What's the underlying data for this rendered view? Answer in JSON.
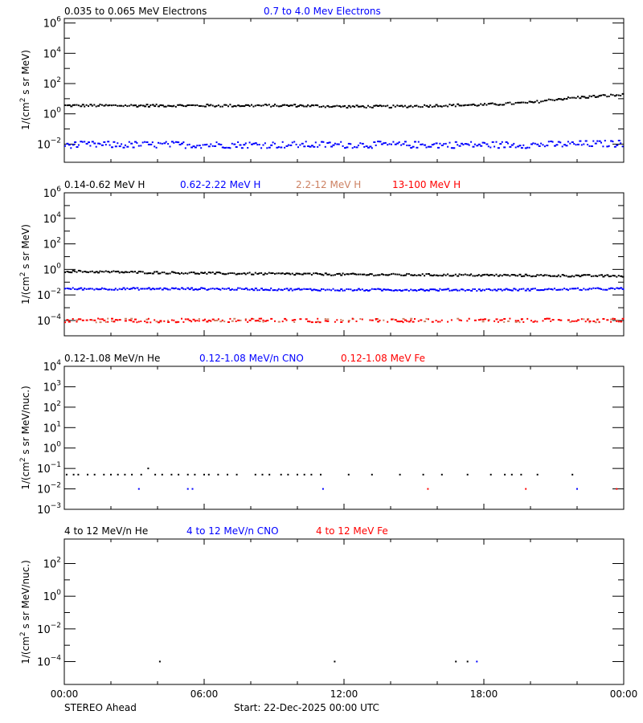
{
  "colors": {
    "black": "#000000",
    "blue": "#0000ff",
    "tan": "#cd8162",
    "red": "#ff0000"
  },
  "footer": {
    "spacecraft": "STEREO Ahead",
    "start": "Start: 22-Dec-2025 00:00 UTC"
  },
  "x_axis": {
    "tick_labels": [
      "00:00",
      "06:00",
      "12:00",
      "18:00",
      "00:00"
    ],
    "major_hours": [
      0,
      6,
      12,
      18,
      24
    ],
    "minor_hours": [
      2,
      4,
      8,
      10,
      14,
      16,
      20,
      22
    ]
  },
  "chart_data": [
    {
      "type": "scatter",
      "title": "",
      "panel": "electrons",
      "legend": [
        {
          "label": "0.035 to 0.065 MeV Electrons",
          "color": "#000000"
        },
        {
          "label": "0.7 to 4.0 Mev Electrons",
          "color": "#0000ff"
        }
      ],
      "xlabel": "",
      "ylabel": "1/(cm² s sr MeV)",
      "ylog": true,
      "ylim_exp": [
        -3.2,
        6.3
      ],
      "y_tick_labels": [
        "10^-2",
        "10^0",
        "10^2",
        "10^4",
        "10^6"
      ],
      "xlim_hours": [
        0,
        24
      ],
      "series": [
        {
          "name": "0.035 to 0.065 MeV Electrons",
          "color": "#000000",
          "hours": [
            0,
            2,
            4,
            6,
            8,
            10,
            12,
            14,
            16,
            18,
            20,
            21,
            22,
            23,
            24
          ],
          "values": [
            3.5,
            3.5,
            3.5,
            3.5,
            3.5,
            3.5,
            3.0,
            3.0,
            3.5,
            4.0,
            5.5,
            9.0,
            12,
            15,
            18
          ]
        },
        {
          "name": "0.7 to 4.0 Mev Electrons",
          "color": "#0000ff",
          "hours": [
            0,
            4,
            8,
            12,
            16,
            20,
            24
          ],
          "values": [
            0.009,
            0.009,
            0.009,
            0.009,
            0.009,
            0.009,
            0.011
          ]
        }
      ]
    },
    {
      "type": "scatter",
      "panel": "protons",
      "legend": [
        {
          "label": "0.14-0.62 MeV H",
          "color": "#000000"
        },
        {
          "label": "0.62-2.22 MeV H",
          "color": "#0000ff"
        },
        {
          "label": "2.2-12 MeV H",
          "color": "#cd8162"
        },
        {
          "label": "13-100 MeV H",
          "color": "#ff0000"
        }
      ],
      "ylabel": "1/(cm² s sr MeV)",
      "ylog": true,
      "ylim_exp": [
        -5.2,
        5.0
      ],
      "y_tick_labels": [
        "10^-4",
        "10^-2",
        "10^0",
        "10^2",
        "10^4",
        "10^6"
      ],
      "series": [
        {
          "name": "0.14-0.62 MeV H",
          "color": "#000000",
          "hours": [
            0,
            6,
            12,
            18,
            24
          ],
          "values": [
            0.7,
            0.5,
            0.4,
            0.35,
            0.3
          ]
        },
        {
          "name": "0.62-2.22 MeV H",
          "color": "#0000ff",
          "hours": [
            0,
            6,
            12,
            18,
            24
          ],
          "values": [
            0.03,
            0.03,
            0.025,
            0.025,
            0.03
          ]
        },
        {
          "name": "2.2-12 MeV H",
          "color": "#cd8162",
          "hours": [
            0,
            24
          ],
          "values": [
            0.0001,
            0.0001
          ]
        },
        {
          "name": "13-100 MeV H",
          "color": "#ff0000",
          "hours": [
            0,
            24
          ],
          "values": [
            0.0001,
            0.0001
          ]
        }
      ]
    },
    {
      "type": "scatter",
      "panel": "heavy-ions-low",
      "legend": [
        {
          "label": "0.12-1.08 MeV/n He",
          "color": "#000000"
        },
        {
          "label": "0.12-1.08 MeV/n CNO",
          "color": "#0000ff"
        },
        {
          "label": "0.12-1.08 MeV Fe",
          "color": "#ff0000"
        }
      ],
      "ylabel": "1/(cm² s sr MeV/nuc.)",
      "ylog": true,
      "ylim_exp": [
        -3,
        4
      ],
      "y_tick_labels": [
        "10^-3",
        "10^-2",
        "10^-1",
        "10^0",
        "10^1",
        "10^2",
        "10^3",
        "10^4"
      ],
      "series": [
        {
          "name": "0.12-1.08 MeV/n He",
          "color": "#000000",
          "hours": [
            0.1,
            0.4,
            0.6,
            1.0,
            1.3,
            1.7,
            2.0,
            2.3,
            2.6,
            2.9,
            3.3,
            3.6,
            3.9,
            4.2,
            4.6,
            4.9,
            5.3,
            5.6,
            6.0,
            6.2,
            6.6,
            7.0,
            7.4,
            8.2,
            8.5,
            8.8,
            9.3,
            9.6,
            10.0,
            10.3,
            10.6,
            11.0,
            12.2,
            13.2,
            14.4,
            15.4,
            16.2,
            17.3,
            18.3,
            18.9,
            19.2,
            19.6,
            20.3,
            21.8
          ],
          "values": [
            0.05,
            0.05,
            0.05,
            0.05,
            0.05,
            0.05,
            0.05,
            0.05,
            0.05,
            0.05,
            0.05,
            0.1,
            0.05,
            0.05,
            0.05,
            0.05,
            0.05,
            0.05,
            0.05,
            0.05,
            0.05,
            0.05,
            0.05,
            0.05,
            0.05,
            0.05,
            0.05,
            0.05,
            0.05,
            0.05,
            0.05,
            0.05,
            0.05,
            0.05,
            0.05,
            0.05,
            0.05,
            0.05,
            0.05,
            0.05,
            0.05,
            0.05,
            0.05,
            0.05
          ]
        },
        {
          "name": "0.12-1.08 MeV/n CNO",
          "color": "#0000ff",
          "hours": [
            3.2,
            5.3,
            5.5,
            11.1,
            22.0
          ],
          "values": [
            0.01,
            0.01,
            0.01,
            0.01,
            0.01
          ]
        },
        {
          "name": "0.12-1.08 MeV Fe",
          "color": "#ff0000",
          "hours": [
            15.6,
            19.8,
            23.7
          ],
          "values": [
            0.01,
            0.01,
            0.01
          ]
        }
      ]
    },
    {
      "type": "scatter",
      "panel": "heavy-ions-high",
      "legend": [
        {
          "label": "4 to 12 MeV/n He",
          "color": "#000000"
        },
        {
          "label": "4 to 12 MeV/n CNO",
          "color": "#0000ff"
        },
        {
          "label": "4 to 12 MeV Fe",
          "color": "#ff0000"
        }
      ],
      "ylabel": "1/(cm² s sr MeV/nuc.)",
      "ylog": true,
      "ylim_exp": [
        -5.4,
        3.5
      ],
      "y_tick_labels": [
        "10^-4",
        "10^-2",
        "10^0",
        "10^2"
      ],
      "series": [
        {
          "name": "4 to 12 MeV/n He",
          "color": "#000000",
          "hours": [
            4.1,
            11.6,
            16.8,
            17.3
          ],
          "values": [
            0.0001,
            0.0001,
            0.0001,
            0.0001
          ]
        },
        {
          "name": "4 to 12 MeV/n CNO",
          "color": "#0000ff",
          "hours": [
            17.7
          ],
          "values": [
            0.0001
          ]
        },
        {
          "name": "4 to 12 MeV Fe",
          "color": "#ff0000",
          "hours": [],
          "values": []
        }
      ]
    }
  ]
}
